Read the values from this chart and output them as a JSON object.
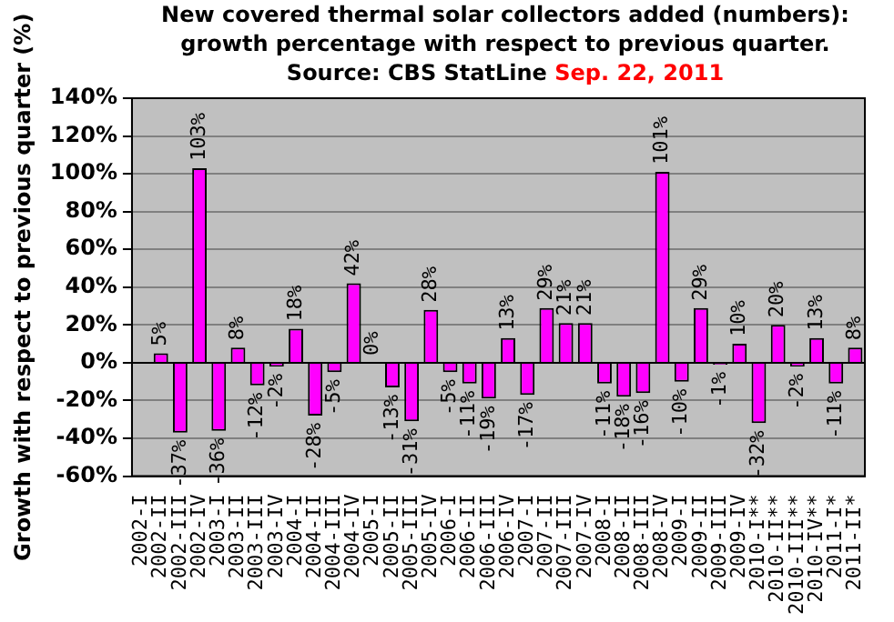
{
  "chart_data": {
    "type": "bar",
    "title": "New covered thermal solar collectors added (numbers): growth percentage with respect to previous quarter.",
    "subtitle": "Source: CBS StatLine",
    "annotations": [
      "Sep. 22, 2011"
    ],
    "ylabel": "Growth with respect to previous quarter (%)",
    "categories": [
      "2002-I",
      "2002-II",
      "2002-III",
      "2002-IV",
      "2003-I",
      "2003-II",
      "2003-III",
      "2003-IV",
      "2004-I",
      "2004-II",
      "2004-III",
      "2004-IV",
      "2005-I",
      "2005-II",
      "2005-III",
      "2005-IV",
      "2006-I",
      "2006-II",
      "2006-III",
      "2006-IV",
      "2007-I",
      "2007-II",
      "2007-III",
      "2007-IV",
      "2008-I",
      "2008-II",
      "2008-III",
      "2008-IV",
      "2009-I",
      "2009-II",
      "2009-III",
      "2009-IV",
      "2010-I**",
      "2010-II**",
      "2010-III**",
      "2010-IV**",
      "2011-I*",
      "2011-II*"
    ],
    "values": [
      null,
      5,
      -37,
      103,
      -36,
      8,
      -12,
      -2,
      18,
      -28,
      -5,
      42,
      0,
      -13,
      -31,
      28,
      -5,
      -11,
      -19,
      13,
      -17,
      29,
      21,
      21,
      -11,
      -18,
      -16,
      101,
      -10,
      29,
      -1,
      10,
      -32,
      20,
      -2,
      13,
      -11,
      8
    ],
    "value_labels": [
      null,
      "5%",
      "-37%",
      "103%",
      "-36%",
      "8%",
      "-12%",
      "-2%",
      "18%",
      "-28%",
      "-5%",
      "42%",
      "0%",
      "-13%",
      "-31%",
      "28%",
      "-5%",
      "-11%",
      "-19%",
      "13%",
      "-17%",
      "29%",
      "21%",
      "21%",
      "-11%",
      "-18%",
      "-16%",
      "101%",
      "-10%",
      "29%",
      "-1%",
      "10%",
      "-32%",
      "20%",
      "-2%",
      "13%",
      "-11%",
      "8%"
    ],
    "color": "#ff00ff",
    "ylim": [
      -60,
      140
    ],
    "yticks": [
      {
        "value": -60,
        "label": "-60%"
      },
      {
        "value": -40,
        "label": "-40%"
      },
      {
        "value": -20,
        "label": "-20%"
      },
      {
        "value": 0,
        "label": "0%"
      },
      {
        "value": 20,
        "label": "20%"
      },
      {
        "value": 40,
        "label": "40%"
      },
      {
        "value": 60,
        "label": "60%"
      },
      {
        "value": 80,
        "label": "80%"
      },
      {
        "value": 100,
        "label": "100%"
      },
      {
        "value": 120,
        "label": "120%"
      },
      {
        "value": 140,
        "label": "140%"
      }
    ],
    "grid": "y",
    "legend": false
  }
}
